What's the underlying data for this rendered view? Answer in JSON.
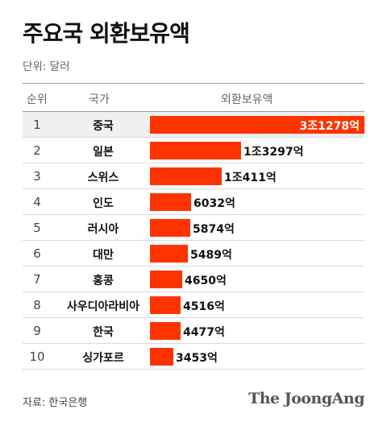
{
  "title": "주요국 외환보유액",
  "unit": "단위: 달러",
  "source": "자료: 한국은행",
  "logo": "The JoongAng",
  "colors": {
    "bar": "#ff3300",
    "first_row_bg": "#f0f0f0"
  },
  "table_headers": {
    "rank": "순위",
    "country": "국가",
    "value": "외환보유액"
  },
  "chart_data": {
    "type": "bar",
    "orientation": "horizontal",
    "title": "주요국 외환보유액",
    "unit": "단위: 달러",
    "value_unit": "억 달러",
    "categories": [
      "중국",
      "일본",
      "스위스",
      "인도",
      "러시아",
      "대만",
      "홍콩",
      "사우디아라비아",
      "한국",
      "싱가포르"
    ],
    "ranks": [
      "1",
      "2",
      "3",
      "4",
      "5",
      "6",
      "7",
      "8",
      "9",
      "10"
    ],
    "values": [
      31278,
      13297,
      10411,
      6032,
      5874,
      5489,
      4650,
      4516,
      4477,
      3453
    ],
    "value_labels": [
      "3조1278억",
      "1조3297억",
      "1조411억",
      "6032억",
      "5874억",
      "5489억",
      "4650억",
      "4516억",
      "4477억",
      "3453억"
    ]
  }
}
